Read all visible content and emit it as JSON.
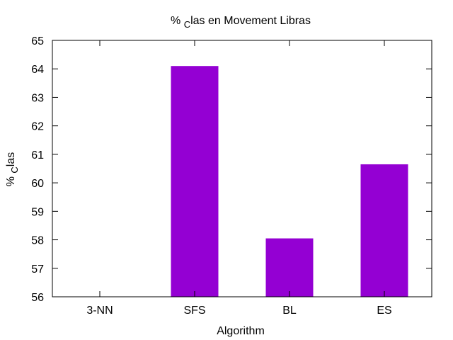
{
  "chart_data": {
    "type": "bar",
    "title": {
      "prefix": "% ",
      "subscript": "C",
      "suffix": "las en Movement Libras"
    },
    "xlabel": "Algorithm",
    "ylabel": {
      "prefix": "% ",
      "subscript": "C",
      "suffix": "las"
    },
    "categories": [
      "3-NN",
      "SFS",
      "BL",
      "ES"
    ],
    "series": [
      {
        "values": [
          56,
          64.1,
          58.05,
          60.65
        ],
        "color": "#9400d3"
      }
    ],
    "ylim": [
      56,
      65
    ],
    "yticks": [
      "56",
      "57",
      "58",
      "59",
      "60",
      "61",
      "62",
      "63",
      "64",
      "65"
    ],
    "grid": false,
    "legend": "none"
  }
}
